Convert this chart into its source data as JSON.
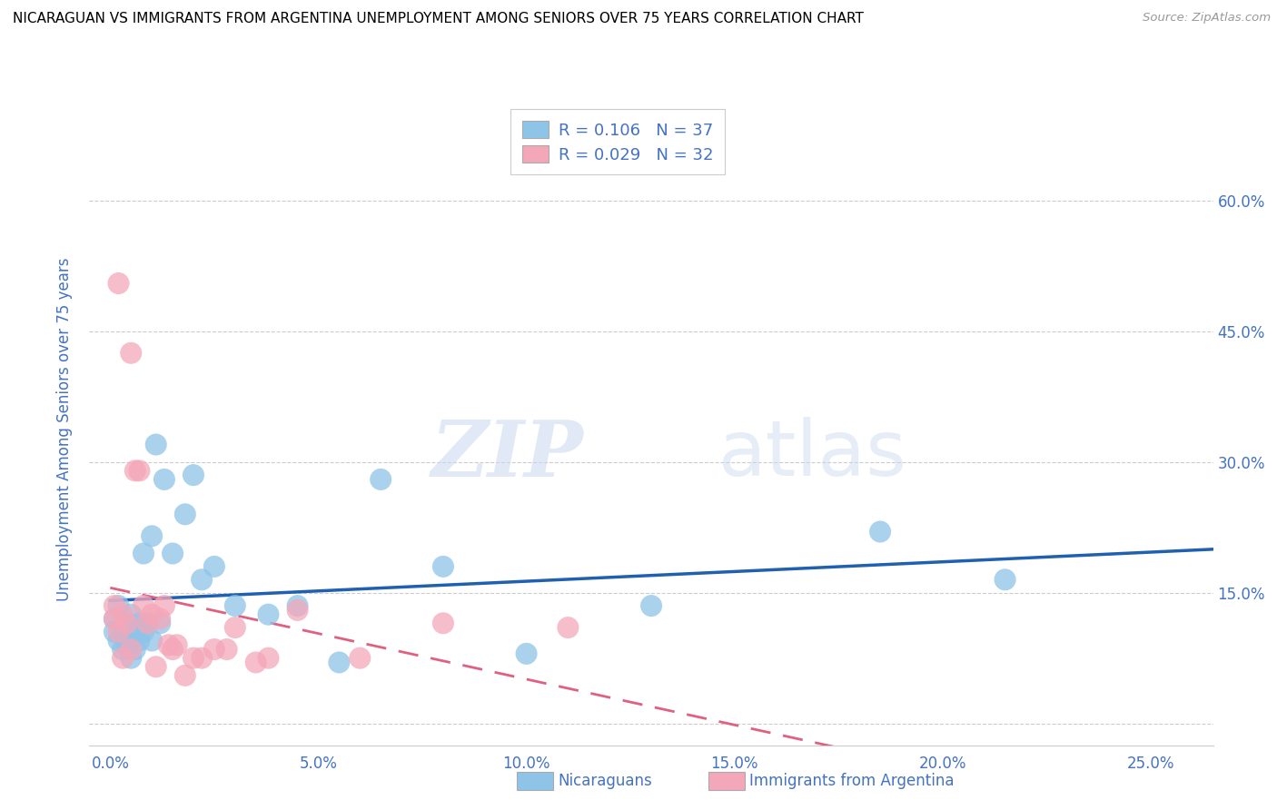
{
  "title": "NICARAGUAN VS IMMIGRANTS FROM ARGENTINA UNEMPLOYMENT AMONG SENIORS OVER 75 YEARS CORRELATION CHART",
  "source": "Source: ZipAtlas.com",
  "ylabel": "Unemployment Among Seniors over 75 years",
  "xlabel_ticks": [
    0.0,
    0.05,
    0.1,
    0.15,
    0.2,
    0.25
  ],
  "xlabel_labels": [
    "0.0%",
    "5.0%",
    "10.0%",
    "15.0%",
    "20.0%",
    "25.0%"
  ],
  "ylabel_ticks": [
    0.0,
    0.15,
    0.3,
    0.45,
    0.6
  ],
  "ylabel_labels": [
    "",
    "15.0%",
    "30.0%",
    "45.0%",
    "60.0%"
  ],
  "xlim": [
    -0.005,
    0.265
  ],
  "ylim": [
    -0.025,
    0.7
  ],
  "legend_R1": "R = 0.106",
  "legend_N1": "N = 37",
  "legend_R2": "R = 0.029",
  "legend_N2": "N = 32",
  "color_blue": "#8ec4e8",
  "color_pink": "#f4a7b9",
  "color_blue_line": "#2060b0",
  "color_pink_line": "#e06080",
  "color_blue_text": "#4472c4",
  "color_axis_label": "#4472c4",
  "color_grid": "#cccccc",
  "watermark_zip": "ZIP",
  "watermark_atlas": "atlas",
  "nicaraguan_x": [
    0.001,
    0.001,
    0.002,
    0.002,
    0.003,
    0.003,
    0.004,
    0.004,
    0.005,
    0.005,
    0.006,
    0.006,
    0.007,
    0.007,
    0.008,
    0.008,
    0.009,
    0.01,
    0.01,
    0.011,
    0.012,
    0.013,
    0.015,
    0.018,
    0.02,
    0.022,
    0.025,
    0.03,
    0.038,
    0.045,
    0.055,
    0.065,
    0.08,
    0.1,
    0.13,
    0.185,
    0.215
  ],
  "nicaraguan_y": [
    0.105,
    0.12,
    0.095,
    0.135,
    0.085,
    0.105,
    0.09,
    0.115,
    0.075,
    0.125,
    0.1,
    0.085,
    0.095,
    0.115,
    0.105,
    0.195,
    0.115,
    0.095,
    0.215,
    0.32,
    0.115,
    0.28,
    0.195,
    0.24,
    0.285,
    0.165,
    0.18,
    0.135,
    0.125,
    0.135,
    0.07,
    0.28,
    0.18,
    0.08,
    0.135,
    0.22,
    0.165
  ],
  "argentina_x": [
    0.001,
    0.001,
    0.002,
    0.002,
    0.003,
    0.003,
    0.004,
    0.005,
    0.005,
    0.006,
    0.007,
    0.008,
    0.009,
    0.01,
    0.011,
    0.012,
    0.013,
    0.014,
    0.015,
    0.016,
    0.018,
    0.02,
    0.022,
    0.025,
    0.028,
    0.03,
    0.035,
    0.038,
    0.045,
    0.06,
    0.08,
    0.11
  ],
  "argentina_y": [
    0.12,
    0.135,
    0.105,
    0.505,
    0.075,
    0.125,
    0.115,
    0.425,
    0.085,
    0.29,
    0.29,
    0.135,
    0.115,
    0.125,
    0.065,
    0.12,
    0.135,
    0.09,
    0.085,
    0.09,
    0.055,
    0.075,
    0.075,
    0.085,
    0.085,
    0.11,
    0.07,
    0.075,
    0.13,
    0.075,
    0.115,
    0.11
  ]
}
